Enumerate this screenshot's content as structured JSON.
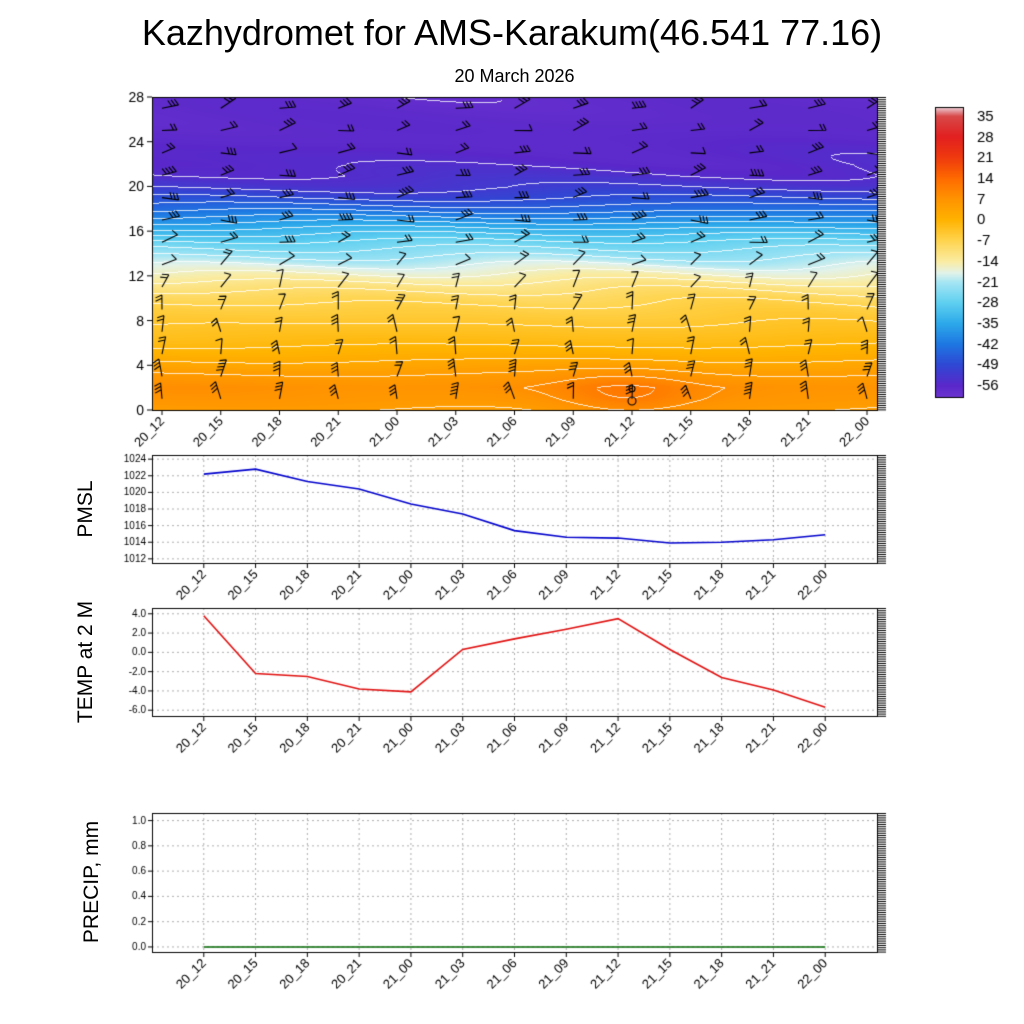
{
  "header": {
    "title": "Kazhydromet for AMS-Karakum(46.541 77.16)",
    "subtitle": "20 March 2026"
  },
  "time_labels": [
    "20_12",
    "20_15",
    "20_18",
    "20_21",
    "21_00",
    "21_03",
    "21_06",
    "21_09",
    "21_12",
    "21_15",
    "21_18",
    "21_21",
    "22_00"
  ],
  "chart_data": [
    {
      "type": "heatmap",
      "name": "wind-temperature-height-cross-section",
      "title": "20 March 2026",
      "ylabel": "",
      "units": "temperature deg C by color, height km on y-axis, wind barbs overlaid",
      "y_ticks": [
        0,
        4,
        8,
        12,
        16,
        20,
        24,
        28
      ],
      "ylim": [
        0,
        28
      ],
      "profile_heights": [
        0,
        1,
        2,
        3,
        4,
        5,
        6,
        7,
        8,
        9,
        10,
        11,
        12,
        13,
        14,
        15,
        16,
        17,
        18,
        19,
        20,
        21,
        22,
        24,
        28
      ],
      "profile_temps": [
        5,
        6.5,
        7.5,
        5.5,
        3,
        0.5,
        -1.5,
        -3,
        -4.5,
        -6,
        -8,
        -11,
        -15,
        -19,
        -23,
        -27,
        -32,
        -38,
        -44,
        -49,
        -52.5,
        -54.5,
        -55.5,
        -56.5,
        -57.5
      ],
      "warm_anomaly": {
        "time_index": 8,
        "height_km": 1.3,
        "amplitude_c": 4
      },
      "calm_circle_time_index": 8,
      "calm_circle_heights_km": [
        0.8,
        1.9
      ],
      "wind_rows": [
        {
          "height_km": 1,
          "angle_deg": 95,
          "feathers": 3
        },
        {
          "height_km": 3,
          "angle_deg": 85,
          "feathers": 3
        },
        {
          "height_km": 5,
          "angle_deg": 88,
          "feathers": 2
        },
        {
          "height_km": 7,
          "angle_deg": 92,
          "feathers": 2
        },
        {
          "height_km": 9,
          "angle_deg": 75,
          "feathers": 2
        },
        {
          "height_km": 11,
          "angle_deg": 62,
          "feathers": 1
        },
        {
          "height_km": 13,
          "angle_deg": 35,
          "feathers": 1
        },
        {
          "height_km": 15,
          "angle_deg": 15,
          "feathers": 2
        },
        {
          "height_km": 17,
          "angle_deg": 4,
          "feathers": 3
        },
        {
          "height_km": 19,
          "angle_deg": 8,
          "feathers": 3
        },
        {
          "height_km": 21,
          "angle_deg": 12,
          "feathers": 3
        },
        {
          "height_km": 23,
          "angle_deg": 8,
          "feathers": 2
        },
        {
          "height_km": 25,
          "angle_deg": 14,
          "feathers": 2
        },
        {
          "height_km": 27,
          "angle_deg": 18,
          "feathers": 3
        }
      ],
      "colorbar_ticks": [
        35,
        28,
        21,
        14,
        7,
        0,
        -7,
        -14,
        -21,
        -28,
        -35,
        -42,
        -49,
        -56
      ],
      "palette": [
        {
          "v": 38,
          "c": "#eccdd4"
        },
        {
          "v": 35,
          "c": "#d84848"
        },
        {
          "v": 28,
          "c": "#e22020"
        },
        {
          "v": 21,
          "c": "#ef3a0e"
        },
        {
          "v": 14,
          "c": "#ff6a00"
        },
        {
          "v": 7,
          "c": "#ff9400"
        },
        {
          "v": 0,
          "c": "#ffb300"
        },
        {
          "v": -7,
          "c": "#ffd44e"
        },
        {
          "v": -14,
          "c": "#faeca2"
        },
        {
          "v": -18,
          "c": "#e2f2ea"
        },
        {
          "v": -21,
          "c": "#a6e6f4"
        },
        {
          "v": -28,
          "c": "#5fd0f0"
        },
        {
          "v": -35,
          "c": "#2da9ea"
        },
        {
          "v": -42,
          "c": "#1e77e2"
        },
        {
          "v": -49,
          "c": "#2f48d4"
        },
        {
          "v": -56,
          "c": "#5a28ca"
        },
        {
          "v": -60,
          "c": "#6c34cf"
        }
      ]
    },
    {
      "type": "line",
      "name": "pmsl",
      "ylabel": "PMSL",
      "color": "#0000cc",
      "grid": true,
      "y_ticks": [
        1012,
        1014,
        1016,
        1018,
        1020,
        1022,
        1024
      ],
      "y_tick_labels": [
        "1012",
        "1014",
        "1016",
        "1018",
        "1020",
        "1022",
        "1024"
      ],
      "ylim": [
        1011.5,
        1024.5
      ],
      "values": [
        1022.2,
        1022.8,
        1021.3,
        1020.4,
        1018.6,
        1017.4,
        1015.4,
        1014.6,
        1014.5,
        1013.9,
        1014.0,
        1014.3,
        1014.9
      ]
    },
    {
      "type": "line",
      "name": "temp-at-2m",
      "ylabel": "TEMP at 2 M",
      "color": "#e01010",
      "grid": true,
      "y_ticks": [
        -6,
        -4,
        -2,
        0,
        2,
        4
      ],
      "y_tick_labels": [
        "-6.0",
        "-4.0",
        "-2.0",
        "0.0",
        "2.0",
        "4.0"
      ],
      "ylim": [
        -6.6,
        4.6
      ],
      "values": [
        3.8,
        -2.2,
        -2.5,
        -3.8,
        -4.1,
        0.3,
        1.4,
        2.4,
        3.5,
        0.3,
        -2.6,
        -3.9,
        -5.7
      ]
    },
    {
      "type": "line",
      "name": "precip",
      "ylabel": "PRECIP, mm",
      "color": "#006400",
      "grid": true,
      "y_ticks": [
        0,
        0.2,
        0.4,
        0.6,
        0.8,
        1.0
      ],
      "y_tick_labels": [
        "0.0",
        "0.2",
        "0.4",
        "0.6",
        "0.8",
        "1.0"
      ],
      "ylim": [
        -0.04,
        1.06
      ],
      "values": [
        0,
        0,
        0,
        0,
        0,
        0,
        0,
        0,
        0,
        0,
        0,
        0,
        0
      ]
    }
  ]
}
